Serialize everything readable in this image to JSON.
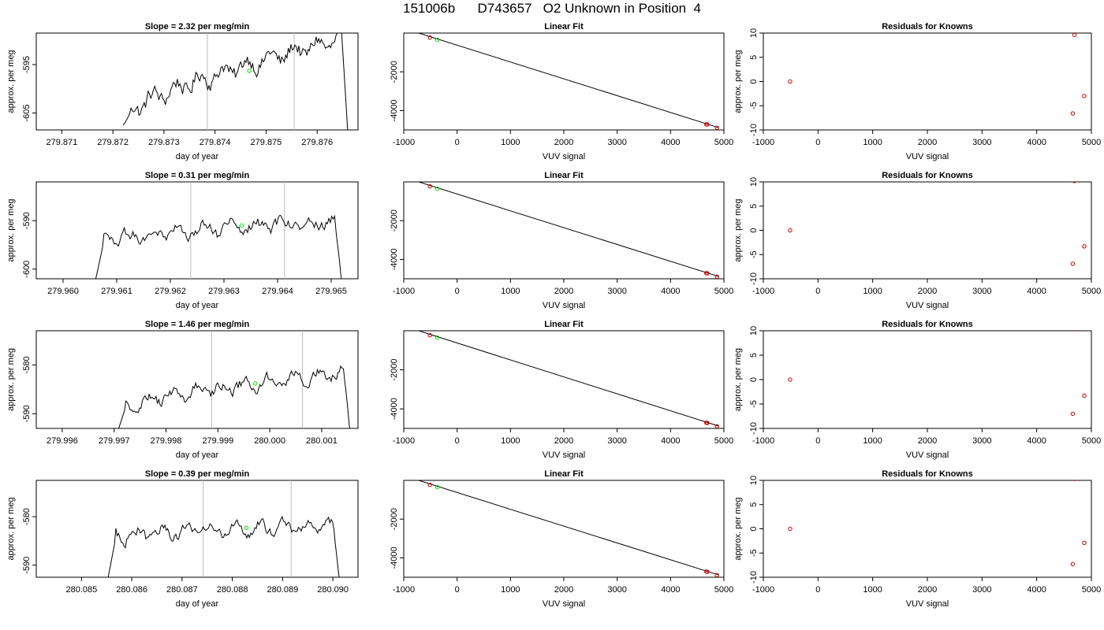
{
  "figure": {
    "title": "151006b      D743657   O2 Unknown in Position  4"
  },
  "colors": {
    "trace": "#000000",
    "known": "#cc0000",
    "unknown": "#00dd00",
    "marker_line": "#bbbbbb",
    "frame": "#000000"
  },
  "chart_data": [
    {
      "panel": "trace-row1",
      "type": "line",
      "title": "Slope =  2.32  per meg/min",
      "xlabel": "day of year",
      "ylabel": "approx. per meg",
      "xlim": [
        279.8705,
        279.8768
      ],
      "ylim": [
        -608.5,
        -588.5
      ],
      "xticks": [
        279.871,
        279.872,
        279.873,
        279.874,
        279.875,
        279.876
      ],
      "xtick_labels": [
        "279.871",
        "279.872",
        "279.873",
        "279.874",
        "279.875",
        "279.876"
      ],
      "yticks": [
        -595,
        -605
      ],
      "ytick_labels": [
        "-595",
        "-605"
      ],
      "x_start": 279.8722,
      "x_end": 279.8766,
      "y_start": -607.5,
      "y_end": -606.0,
      "trend": [
        -606.0,
        -589.5
      ],
      "noise": 2.4,
      "drop_to": -609,
      "markers_x": [
        279.87385,
        279.87555
      ],
      "highlight": {
        "x": 279.87467,
        "y": -596.3
      }
    },
    {
      "panel": "fit-row1",
      "type": "scatter",
      "title": "Linear Fit",
      "xlabel": "VUV signal",
      "ylabel": "",
      "xlim": [
        -1000,
        5000
      ],
      "ylim": [
        -5000,
        0
      ],
      "xticks": [
        -1000,
        0,
        1000,
        2000,
        3000,
        4000,
        5000
      ],
      "xtick_labels": [
        "-1000",
        "0",
        "1000",
        "2000",
        "3000",
        "4000",
        "5000"
      ],
      "yticks": [
        -2000,
        -4000
      ],
      "ytick_labels": [
        "-2000",
        "-4000"
      ],
      "fit_line": {
        "x": [
          -800,
          4900
        ],
        "y": [
          70,
          -4880
        ]
      },
      "knowns": [
        {
          "x": -510,
          "y": -230
        },
        {
          "x": 4670,
          "y": -4710
        },
        {
          "x": 4690,
          "y": -4720
        },
        {
          "x": 4870,
          "y": -4890
        }
      ],
      "unknown": [
        {
          "x": -370,
          "y": -350
        }
      ]
    },
    {
      "panel": "resid-row1",
      "type": "scatter",
      "title": "Residuals for Knowns",
      "xlabel": "VUV signal",
      "ylabel": "approx. per meg",
      "xlim": [
        -1000,
        5000
      ],
      "ylim": [
        -10,
        10
      ],
      "xticks": [
        -1000,
        0,
        1000,
        2000,
        3000,
        4000,
        5000
      ],
      "xtick_labels": [
        "-1000",
        "0",
        "1000",
        "2000",
        "3000",
        "4000",
        "5000"
      ],
      "yticks": [
        10,
        5,
        0,
        -5,
        -10
      ],
      "ytick_labels": [
        "10",
        "5",
        "0",
        "-5",
        "-10"
      ],
      "points": [
        {
          "x": -510,
          "y": 0
        },
        {
          "x": 4690,
          "y": 9.6
        },
        {
          "x": 4870,
          "y": -3.0
        },
        {
          "x": 4660,
          "y": -6.6
        }
      ]
    },
    {
      "panel": "trace-row2",
      "type": "line",
      "title": "Slope =  0.31  per meg/min",
      "xlabel": "day of year",
      "ylabel": "approx. per meg",
      "xlim": [
        279.9595,
        279.9655
      ],
      "ylim": [
        -602,
        -582
      ],
      "xticks": [
        279.96,
        279.961,
        279.962,
        279.963,
        279.964,
        279.965
      ],
      "xtick_labels": [
        "279.960",
        "279.961",
        "279.962",
        "279.963",
        "279.964",
        "279.965"
      ],
      "yticks": [
        -590,
        -600
      ],
      "ytick_labels": [
        "-590",
        "-600"
      ],
      "x_start": 279.9606,
      "x_end": 279.9652,
      "y_start": -602.5,
      "y_end": -602.5,
      "trend": [
        -594.5,
        -590.0
      ],
      "noise": 1.8,
      "drop_to": -603,
      "markers_x": [
        279.96238,
        279.96413
      ],
      "highlight": {
        "x": 279.96333,
        "y": -591.0
      }
    },
    {
      "panel": "fit-row2",
      "type": "scatter",
      "title": "Linear Fit",
      "xlabel": "VUV signal",
      "ylabel": "",
      "xlim": [
        -1000,
        5000
      ],
      "ylim": [
        -5000,
        0
      ],
      "xticks": [
        -1000,
        0,
        1000,
        2000,
        3000,
        4000,
        5000
      ],
      "xtick_labels": [
        "-1000",
        "0",
        "1000",
        "2000",
        "3000",
        "4000",
        "5000"
      ],
      "yticks": [
        -2000,
        -4000
      ],
      "ytick_labels": [
        "-2000",
        "-4000"
      ],
      "fit_line": {
        "x": [
          -800,
          4900
        ],
        "y": [
          70,
          -4880
        ]
      },
      "knowns": [
        {
          "x": -510,
          "y": -230
        },
        {
          "x": 4670,
          "y": -4710
        },
        {
          "x": 4690,
          "y": -4720
        },
        {
          "x": 4870,
          "y": -4890
        }
      ],
      "unknown": [
        {
          "x": -370,
          "y": -350
        }
      ]
    },
    {
      "panel": "resid-row2",
      "type": "scatter",
      "title": "Residuals for Knowns",
      "xlabel": "VUV signal",
      "ylabel": "approx. per meg",
      "xlim": [
        -1000,
        5000
      ],
      "ylim": [
        -10,
        10
      ],
      "xticks": [
        -1000,
        0,
        1000,
        2000,
        3000,
        4000,
        5000
      ],
      "xtick_labels": [
        "-1000",
        "0",
        "1000",
        "2000",
        "3000",
        "4000",
        "5000"
      ],
      "yticks": [
        10,
        5,
        0,
        -5,
        -10
      ],
      "ytick_labels": [
        "10",
        "5",
        "0",
        "-5",
        "-10"
      ],
      "points": [
        {
          "x": -510,
          "y": 0
        },
        {
          "x": 4690,
          "y": 10.2
        },
        {
          "x": 4870,
          "y": -3.3
        },
        {
          "x": 4660,
          "y": -6.9
        }
      ]
    },
    {
      "panel": "trace-row3",
      "type": "line",
      "title": "Slope =  1.46  per meg/min",
      "xlabel": "day of year",
      "ylabel": "approx. per meg",
      "xlim": [
        279.9955,
        280.0017
      ],
      "ylim": [
        -593,
        -573
      ],
      "xticks": [
        279.996,
        279.997,
        279.998,
        279.999,
        280.0,
        280.001
      ],
      "xtick_labels": [
        "279.996",
        "279.997",
        "279.998",
        "279.999",
        "280.000",
        "280.001"
      ],
      "yticks": [
        -580,
        -590
      ],
      "ytick_labels": [
        "-580",
        "-590"
      ],
      "x_start": 279.99707,
      "x_end": 280.00155,
      "y_start": -593.5,
      "y_end": -583.0,
      "trend": [
        -589.0,
        -581.5
      ],
      "noise": 1.7,
      "drop_to": -594,
      "markers_x": [
        279.99888,
        280.00063
      ],
      "highlight": {
        "x": 279.99972,
        "y": -583.8
      }
    },
    {
      "panel": "fit-row3",
      "type": "scatter",
      "title": "Linear Fit",
      "xlabel": "VUV signal",
      "ylabel": "",
      "xlim": [
        -1000,
        5000
      ],
      "ylim": [
        -5000,
        0
      ],
      "xticks": [
        -1000,
        0,
        1000,
        2000,
        3000,
        4000,
        5000
      ],
      "xtick_labels": [
        "-1000",
        "0",
        "1000",
        "2000",
        "3000",
        "4000",
        "5000"
      ],
      "yticks": [
        -2000,
        -4000
      ],
      "ytick_labels": [
        "-2000",
        "-4000"
      ],
      "fit_line": {
        "x": [
          -800,
          4900
        ],
        "y": [
          70,
          -4880
        ]
      },
      "knowns": [
        {
          "x": -510,
          "y": -230
        },
        {
          "x": 4670,
          "y": -4710
        },
        {
          "x": 4690,
          "y": -4720
        },
        {
          "x": 4870,
          "y": -4890
        }
      ],
      "unknown": [
        {
          "x": -370,
          "y": -350
        }
      ]
    },
    {
      "panel": "resid-row3",
      "type": "scatter",
      "title": "Residuals for Knowns",
      "xlabel": "VUV signal",
      "ylabel": "approx. per meg",
      "xlim": [
        -1000,
        5000
      ],
      "ylim": [
        -10,
        10
      ],
      "xticks": [
        -1000,
        0,
        1000,
        2000,
        3000,
        4000,
        5000
      ],
      "xtick_labels": [
        "-1000",
        "0",
        "1000",
        "2000",
        "3000",
        "4000",
        "5000"
      ],
      "yticks": [
        10,
        5,
        0,
        -5,
        -10
      ],
      "ytick_labels": [
        "10",
        "5",
        "0",
        "-5",
        "-10"
      ],
      "points": [
        {
          "x": -510,
          "y": 0
        },
        {
          "x": 4690,
          "y": 10.3
        },
        {
          "x": 4870,
          "y": -3.3
        },
        {
          "x": 4660,
          "y": -7.0
        }
      ]
    },
    {
      "panel": "trace-row4",
      "type": "line",
      "title": "Slope =  0.39  per meg/min",
      "xlabel": "day of year",
      "ylabel": "approx. per meg",
      "xlim": [
        280.0841,
        280.0905
      ],
      "ylim": [
        -592.5,
        -572.5
      ],
      "xticks": [
        280.085,
        280.086,
        280.087,
        280.088,
        280.089,
        280.09
      ],
      "xtick_labels": [
        "280.085",
        "280.086",
        "280.087",
        "280.088",
        "280.089",
        "280.090"
      ],
      "yticks": [
        -580,
        -590
      ],
      "ytick_labels": [
        "-580",
        "-590"
      ],
      "x_start": 280.08552,
      "x_end": 280.09013,
      "y_start": -593.0,
      "y_end": -593.0,
      "trend": [
        -584.5,
        -581.5
      ],
      "noise": 1.7,
      "drop_to": -593,
      "markers_x": [
        280.08742,
        280.08917
      ],
      "highlight": {
        "x": 280.08828,
        "y": -582.3
      }
    },
    {
      "panel": "fit-row4",
      "type": "scatter",
      "title": "Linear Fit",
      "xlabel": "VUV signal",
      "ylabel": "",
      "xlim": [
        -1000,
        5000
      ],
      "ylim": [
        -5000,
        0
      ],
      "xticks": [
        -1000,
        0,
        1000,
        2000,
        3000,
        4000,
        5000
      ],
      "xtick_labels": [
        "-1000",
        "0",
        "1000",
        "2000",
        "3000",
        "4000",
        "5000"
      ],
      "yticks": [
        -2000,
        -4000
      ],
      "ytick_labels": [
        "-2000",
        "-4000"
      ],
      "fit_line": {
        "x": [
          -800,
          4900
        ],
        "y": [
          70,
          -4880
        ]
      },
      "knowns": [
        {
          "x": -510,
          "y": -230
        },
        {
          "x": 4670,
          "y": -4710
        },
        {
          "x": 4690,
          "y": -4720
        },
        {
          "x": 4870,
          "y": -4890
        }
      ],
      "unknown": [
        {
          "x": -370,
          "y": -350
        }
      ]
    },
    {
      "panel": "resid-row4",
      "type": "scatter",
      "title": "Residuals for Knowns",
      "xlabel": "VUV signal",
      "ylabel": "approx. per meg",
      "xlim": [
        -1000,
        5000
      ],
      "ylim": [
        -10,
        10
      ],
      "xticks": [
        -1000,
        0,
        1000,
        2000,
        3000,
        4000,
        5000
      ],
      "xtick_labels": [
        "-1000",
        "0",
        "1000",
        "2000",
        "3000",
        "4000",
        "5000"
      ],
      "yticks": [
        10,
        5,
        0,
        -5,
        -10
      ],
      "ytick_labels": [
        "10",
        "5",
        "0",
        "-5",
        "-10"
      ],
      "points": [
        {
          "x": -510,
          "y": 0
        },
        {
          "x": 4690,
          "y": 10.3
        },
        {
          "x": 4870,
          "y": -2.9
        },
        {
          "x": 4660,
          "y": -7.3
        }
      ]
    }
  ]
}
